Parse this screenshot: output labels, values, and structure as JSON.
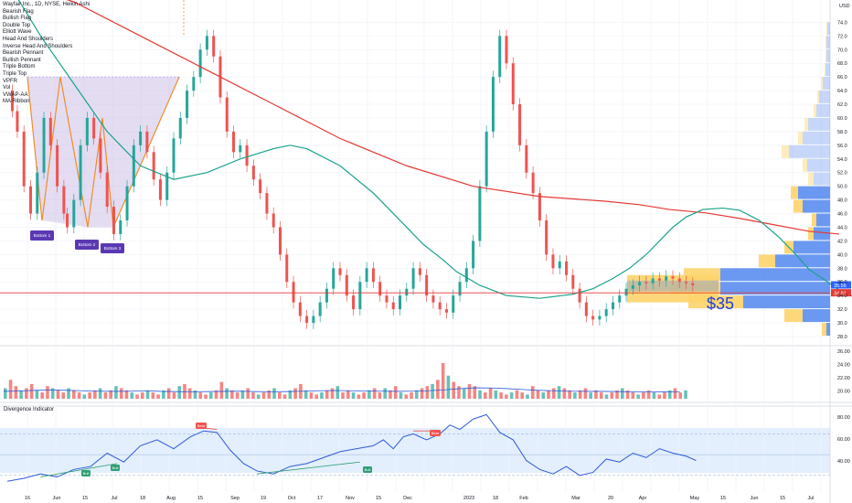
{
  "chart_data": {
    "type": "candlestick",
    "symbol_line": "Wayfair Inc., 1D, NYSE, Heikin Ashi",
    "indicators": [
      "Bearish Flag",
      "Bullish Flag",
      "Double Top",
      "Elliott Wave",
      "Head And Shoulders",
      "Inverse Head And Shoulders",
      "Bearish Pennant",
      "Bullish Pennant",
      "Triple Bottom",
      "Triple Top",
      "VPFR",
      "Vol",
      "VWAP-AA",
      "MA Ribbon"
    ],
    "currency": "USD",
    "price_axis": {
      "ticks": [
        28.0,
        30.0,
        32.0,
        34.0,
        36.0,
        38.0,
        40.0,
        42.0,
        44.0,
        46.0,
        48.0,
        50.0,
        52.0,
        54.0,
        56.0,
        58.0,
        60.0,
        62.0,
        64.0,
        66.0,
        68.0,
        70.0,
        72.0,
        74.0
      ]
    },
    "price_labels": {
      "last": "35.56",
      "second": "34.81"
    },
    "big_annotation": "$35",
    "pattern_labels": [
      "Bottom 1",
      "Bottom 2",
      "Bottom 3"
    ],
    "volume_axis": {
      "ticks": [
        "26.00",
        "24.00",
        "22.00",
        "20.00"
      ]
    },
    "oscillator": {
      "title": "Divergence Indicator",
      "ticks": [
        "80.00",
        "60.00",
        "40.00"
      ],
      "labels": [
        "Bull",
        "Bull",
        "Bear",
        "Bear",
        "Bull"
      ]
    },
    "time_axis": [
      "16",
      "Jun",
      "15",
      "Jul",
      "18",
      "Aug",
      "15",
      "Sep",
      "19",
      "Oct",
      "17",
      "Nov",
      "15",
      "Dec",
      "2023",
      "18",
      "Feb",
      "Mar",
      "20",
      "Apr",
      "May",
      "15",
      "Jun",
      "15",
      "Jul"
    ],
    "ma_slow": [
      [
        0,
        80
      ],
      [
        40,
        77
      ],
      [
        80,
        72
      ],
      [
        120,
        67
      ],
      [
        160,
        62
      ],
      [
        200,
        57
      ],
      [
        240,
        53
      ],
      [
        280,
        50
      ],
      [
        320,
        48.5
      ],
      [
        360,
        47.8
      ],
      [
        380,
        47.3
      ],
      [
        398,
        46.6
      ],
      [
        420,
        46.1
      ],
      [
        440,
        45.3
      ],
      [
        460,
        44.4
      ],
      [
        482,
        43.4
      ],
      [
        500,
        43.0
      ]
    ],
    "ma_fast": [
      [
        0,
        80
      ],
      [
        20,
        72
      ],
      [
        40,
        65
      ],
      [
        60,
        58
      ],
      [
        80,
        53
      ],
      [
        100,
        51
      ],
      [
        120,
        52
      ],
      [
        140,
        54
      ],
      [
        160,
        55.5
      ],
      [
        170,
        56
      ],
      [
        180,
        55.5
      ],
      [
        200,
        53
      ],
      [
        220,
        49
      ],
      [
        240,
        44
      ],
      [
        250,
        41.5
      ],
      [
        262,
        39.2
      ],
      [
        270,
        37.5
      ],
      [
        284,
        35.5
      ],
      [
        300,
        34
      ],
      [
        320,
        33.6
      ],
      [
        340,
        34.2
      ],
      [
        352,
        35
      ],
      [
        364,
        36.5
      ],
      [
        374,
        38
      ],
      [
        384,
        40
      ],
      [
        392,
        42
      ],
      [
        400,
        44
      ],
      [
        408,
        45.5
      ],
      [
        418,
        46.6
      ],
      [
        430,
        46.8
      ],
      [
        440,
        46.5
      ],
      [
        452,
        45
      ],
      [
        464,
        42.5
      ],
      [
        474,
        40
      ],
      [
        482,
        37.8
      ],
      [
        490,
        36.5
      ],
      [
        500,
        34.8
      ],
      [
        512,
        33.5
      ]
    ],
    "price_path": [
      [
        0,
        64
      ],
      [
        6,
        58
      ],
      [
        10,
        50
      ],
      [
        14,
        46
      ],
      [
        18,
        52
      ],
      [
        22,
        60
      ],
      [
        26,
        56
      ],
      [
        30,
        50
      ],
      [
        34,
        46
      ],
      [
        36,
        44
      ],
      [
        40,
        48
      ],
      [
        44,
        56
      ],
      [
        48,
        60
      ],
      [
        52,
        57
      ],
      [
        56,
        52
      ],
      [
        60,
        47
      ],
      [
        64,
        43
      ],
      [
        68,
        45
      ],
      [
        72,
        50
      ],
      [
        76,
        56
      ],
      [
        80,
        58
      ],
      [
        84,
        55
      ],
      [
        88,
        51
      ],
      [
        92,
        48
      ],
      [
        96,
        52
      ],
      [
        100,
        57
      ],
      [
        104,
        60
      ],
      [
        108,
        64
      ],
      [
        112,
        66
      ],
      [
        116,
        70
      ],
      [
        120,
        72
      ],
      [
        124,
        69
      ],
      [
        128,
        63
      ],
      [
        132,
        58
      ],
      [
        136,
        55
      ],
      [
        140,
        56
      ],
      [
        144,
        53
      ],
      [
        148,
        51
      ],
      [
        152,
        49
      ],
      [
        156,
        46
      ],
      [
        160,
        44
      ],
      [
        164,
        40
      ],
      [
        168,
        36
      ],
      [
        172,
        33
      ],
      [
        176,
        31
      ],
      [
        180,
        30
      ],
      [
        184,
        31
      ],
      [
        188,
        33
      ],
      [
        192,
        35
      ],
      [
        196,
        38
      ],
      [
        200,
        37
      ],
      [
        204,
        34
      ],
      [
        208,
        32
      ],
      [
        212,
        36
      ],
      [
        216,
        38
      ],
      [
        220,
        36
      ],
      [
        224,
        34
      ],
      [
        228,
        33
      ],
      [
        232,
        32
      ],
      [
        236,
        34
      ],
      [
        240,
        35
      ],
      [
        244,
        38
      ],
      [
        248,
        37
      ],
      [
        252,
        34
      ],
      [
        256,
        33
      ],
      [
        260,
        32
      ],
      [
        264,
        31.5
      ],
      [
        268,
        34
      ],
      [
        272,
        36
      ],
      [
        276,
        38
      ],
      [
        280,
        42
      ],
      [
        284,
        50
      ],
      [
        288,
        58
      ],
      [
        292,
        66
      ],
      [
        296,
        72
      ],
      [
        300,
        68
      ],
      [
        304,
        62
      ],
      [
        308,
        56
      ],
      [
        312,
        52
      ],
      [
        316,
        49
      ],
      [
        320,
        45
      ],
      [
        324,
        40
      ],
      [
        328,
        38
      ],
      [
        332,
        39
      ],
      [
        336,
        37
      ],
      [
        340,
        35
      ],
      [
        344,
        33
      ],
      [
        348,
        31
      ],
      [
        352,
        30.5
      ],
      [
        356,
        31
      ],
      [
        360,
        32
      ],
      [
        364,
        33
      ],
      [
        368,
        34
      ],
      [
        372,
        35
      ],
      [
        376,
        35.5
      ],
      [
        380,
        36
      ],
      [
        384,
        35.8
      ],
      [
        388,
        36.5
      ],
      [
        392,
        36.2
      ],
      [
        396,
        36.8
      ],
      [
        400,
        36.5
      ],
      [
        404,
        36
      ],
      [
        408,
        35.8
      ],
      [
        412,
        35.5
      ]
    ],
    "volume_bars": [
      5,
      9,
      6,
      4,
      5,
      7,
      4,
      3,
      6,
      5,
      4,
      3,
      5,
      4,
      3,
      2,
      3,
      4,
      5,
      3,
      4,
      6,
      5,
      4,
      3,
      2,
      3,
      4,
      3,
      2,
      4,
      5,
      3,
      6,
      7,
      5,
      4,
      3,
      2,
      3,
      4,
      8,
      5,
      4,
      3,
      4,
      5,
      3,
      2,
      3,
      4,
      5,
      3,
      2,
      4,
      5,
      7,
      4,
      3,
      2,
      3,
      4,
      5,
      6,
      3,
      4,
      3,
      2,
      3,
      4,
      5,
      3,
      5,
      4,
      6,
      3,
      2,
      3,
      4,
      5,
      6,
      7,
      9,
      17,
      11,
      8,
      6,
      5,
      7,
      6,
      4,
      3,
      5,
      4,
      3,
      2,
      3,
      4,
      3,
      2,
      6,
      4,
      3,
      4,
      5,
      6,
      5,
      4,
      3,
      4,
      5,
      3,
      4,
      3,
      2,
      3,
      4,
      5,
      4,
      3,
      2,
      3,
      4,
      3,
      2,
      3,
      4,
      5,
      3,
      4
    ],
    "volume_ma": [
      3.5,
      3.7,
      4.0,
      4.2,
      4.0,
      3.8,
      3.6,
      3.5,
      3.6,
      3.8,
      3.5,
      3.4,
      3.3,
      3.4,
      3.5,
      3.6,
      3.4,
      3.3,
      3.4,
      3.6,
      3.8,
      3.9,
      3.8,
      3.7,
      3.6,
      3.5,
      3.6,
      3.8,
      4.2,
      4.8,
      5.2,
      5.1,
      4.8,
      4.4,
      4.0,
      3.8,
      3.6,
      3.5,
      3.5,
      3.4,
      3.3,
      3.2,
      3.3,
      3.2
    ],
    "osc_line": [
      [
        0,
        36
      ],
      [
        10,
        38
      ],
      [
        20,
        41
      ],
      [
        30,
        39
      ],
      [
        40,
        44
      ],
      [
        50,
        46
      ],
      [
        60,
        55
      ],
      [
        70,
        49
      ],
      [
        80,
        60
      ],
      [
        90,
        64
      ],
      [
        100,
        58
      ],
      [
        110,
        66
      ],
      [
        118,
        70
      ],
      [
        126,
        69
      ],
      [
        134,
        57
      ],
      [
        142,
        48
      ],
      [
        150,
        43
      ],
      [
        160,
        41
      ],
      [
        170,
        46
      ],
      [
        180,
        48
      ],
      [
        190,
        52
      ],
      [
        200,
        56
      ],
      [
        210,
        58
      ],
      [
        220,
        60
      ],
      [
        226,
        64
      ],
      [
        232,
        58
      ],
      [
        238,
        66
      ],
      [
        244,
        68
      ],
      [
        252,
        64
      ],
      [
        260,
        68
      ],
      [
        266,
        74
      ],
      [
        272,
        71
      ],
      [
        280,
        78
      ],
      [
        288,
        81
      ],
      [
        296,
        69
      ],
      [
        304,
        64
      ],
      [
        312,
        50
      ],
      [
        320,
        44
      ],
      [
        328,
        41
      ],
      [
        336,
        46
      ],
      [
        344,
        40
      ],
      [
        352,
        42
      ],
      [
        360,
        51
      ],
      [
        368,
        49
      ],
      [
        376,
        55
      ],
      [
        384,
        52
      ],
      [
        392,
        58
      ],
      [
        400,
        55
      ],
      [
        408,
        53
      ],
      [
        414,
        50
      ]
    ]
  },
  "colors": {
    "up": "#26a69a",
    "down": "#ef5350",
    "ma_slow": "#e53935",
    "ma_fast": "#19a28b",
    "osc": "#2d5ad8",
    "pattern": "#f28c28",
    "vp_up": "#fdd46b",
    "vp_down": "#5b8def",
    "bull_label": "#2f9e74",
    "bear_label": "#ef5350",
    "bottom_label": "#5b38b3"
  }
}
